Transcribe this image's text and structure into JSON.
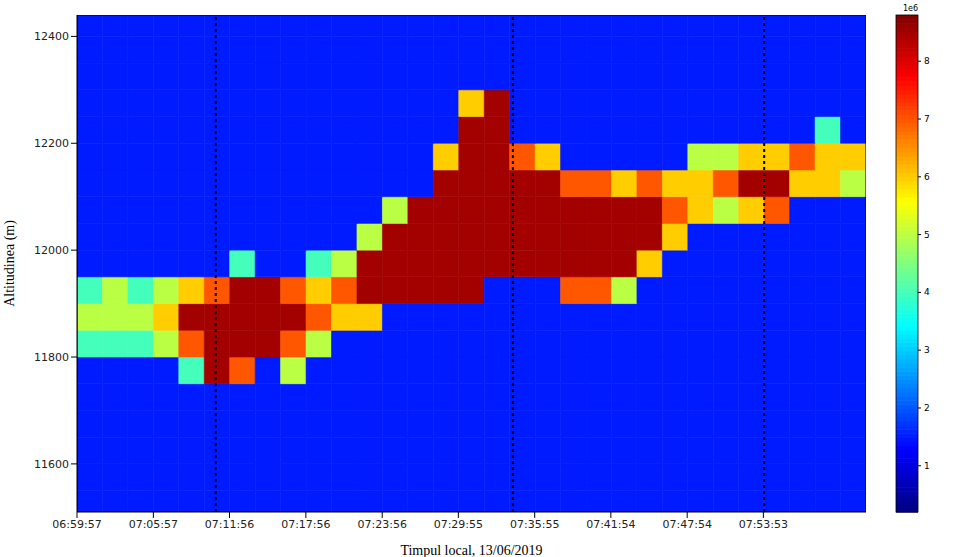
{
  "chart_data": {
    "type": "heatmap",
    "x_label": "Timpul local, 13/06/2019",
    "y_label": "Altitudinea (m)",
    "xlim": [
      25197,
      28917
    ],
    "ylim": [
      11510,
      12440
    ],
    "xticks": [
      {
        "value": 25197,
        "label": "06:59:57"
      },
      {
        "value": 25557,
        "label": "07:05:57"
      },
      {
        "value": 25916,
        "label": "07:11:56"
      },
      {
        "value": 26276,
        "label": "07:17:56"
      },
      {
        "value": 26636,
        "label": "07:23:56"
      },
      {
        "value": 26995,
        "label": "07:29:55"
      },
      {
        "value": 27355,
        "label": "07:35:55"
      },
      {
        "value": 27714,
        "label": "07:41:54"
      },
      {
        "value": 28074,
        "label": "07:47:54"
      },
      {
        "value": 28433,
        "label": "07:53:53"
      }
    ],
    "yticks": [
      11600,
      11800,
      12000,
      12200,
      12400
    ],
    "grid": false,
    "vertical_lines": [
      25851,
      27252,
      28437
    ],
    "x": [
      25257,
      25377,
      25497,
      25617,
      25737,
      25857,
      25977,
      26097,
      26217,
      26337,
      26457,
      26577,
      26697,
      26817,
      26937,
      27057,
      27177,
      27297,
      27417,
      27537,
      27657,
      27777,
      27897,
      28017,
      28137,
      28257,
      28377,
      28497,
      28617,
      28737,
      28857
    ],
    "y": [
      11525,
      11575,
      11625,
      11675,
      11725,
      11775,
      11825,
      11875,
      11925,
      11975,
      12025,
      12075,
      12125,
      12175,
      12225,
      12275,
      12325,
      12375,
      12425
    ],
    "values": [
      [
        1.5,
        1.5,
        1.5,
        1.5,
        1.5,
        1.5,
        1.5,
        1.5,
        1.5,
        1.5,
        1.5,
        1.5,
        1.5,
        1.5,
        1.5,
        1.5,
        1.5,
        1.5,
        1.5,
        1.5,
        1.5,
        1.5,
        1.5,
        1.5,
        1.5,
        1.5,
        1.5,
        1.5,
        1.5,
        1.5,
        1.5
      ],
      [
        1.5,
        1.5,
        1.5,
        1.5,
        1.5,
        1.5,
        1.5,
        1.5,
        1.5,
        1.5,
        1.5,
        1.5,
        1.5,
        1.5,
        1.5,
        1.5,
        1.5,
        1.5,
        1.5,
        1.5,
        1.5,
        1.5,
        1.5,
        1.5,
        1.5,
        1.5,
        1.5,
        1.5,
        1.5,
        1.5,
        1.5
      ],
      [
        1.5,
        1.5,
        1.5,
        1.5,
        1.5,
        1.5,
        1.5,
        1.5,
        1.5,
        1.5,
        1.5,
        1.5,
        1.5,
        1.5,
        1.5,
        1.5,
        1.5,
        1.5,
        1.5,
        1.5,
        1.5,
        1.5,
        1.5,
        1.5,
        1.5,
        1.5,
        1.5,
        1.5,
        1.5,
        1.5,
        1.5
      ],
      [
        1.5,
        1.5,
        1.5,
        1.5,
        1.5,
        1.5,
        1.5,
        1.5,
        1.5,
        1.5,
        1.5,
        1.5,
        1.5,
        1.5,
        1.5,
        1.5,
        1.5,
        1.5,
        1.5,
        1.5,
        1.5,
        1.5,
        1.5,
        1.5,
        1.5,
        1.5,
        1.5,
        1.5,
        1.5,
        1.5,
        1.5
      ],
      [
        1.5,
        1.5,
        1.5,
        1.5,
        1.5,
        1.5,
        1.5,
        1.5,
        1.5,
        1.5,
        1.5,
        1.5,
        1.5,
        1.5,
        1.5,
        1.5,
        1.5,
        1.5,
        1.5,
        1.5,
        1.5,
        1.5,
        1.5,
        1.5,
        1.5,
        1.5,
        1.5,
        1.5,
        1.5,
        1.5,
        1.5
      ],
      [
        1.5,
        1.5,
        1.5,
        1.5,
        4,
        8.5,
        7,
        1.5,
        5,
        1.5,
        1.5,
        1.5,
        1.5,
        1.5,
        1.5,
        1.5,
        1.5,
        1.5,
        1.5,
        1.5,
        1.5,
        1.5,
        1.5,
        1.5,
        1.5,
        1.5,
        1.5,
        1.5,
        1.5,
        1.5,
        1.5
      ],
      [
        4,
        4,
        4,
        5,
        7,
        8.5,
        8.5,
        8.5,
        7,
        5,
        1.5,
        1.5,
        1.5,
        1.5,
        1.5,
        1.5,
        1.5,
        1.5,
        1.5,
        1.5,
        1.5,
        1.5,
        1.5,
        1.5,
        1.5,
        1.5,
        1.5,
        1.5,
        1.5,
        1.5,
        1.5
      ],
      [
        5,
        5,
        5,
        6,
        8.5,
        8.5,
        8.5,
        8.5,
        8.5,
        7,
        6,
        6,
        1.5,
        1.5,
        1.5,
        1.5,
        1.5,
        1.5,
        1.5,
        1.5,
        1.5,
        1.5,
        1.5,
        1.5,
        1.5,
        1.5,
        1.5,
        1.5,
        1.5,
        1.5,
        1.5
      ],
      [
        4,
        5,
        4,
        5,
        6,
        7,
        8.5,
        8.5,
        7,
        6,
        7,
        8.5,
        8.5,
        8.5,
        8.5,
        8.5,
        1.5,
        1.5,
        1.5,
        7,
        7,
        5,
        1.5,
        1.5,
        1.5,
        1.5,
        1.5,
        1.5,
        1.5,
        1.5,
        1.5
      ],
      [
        1.5,
        1.5,
        1.5,
        1.5,
        1.5,
        1.5,
        4,
        1.5,
        1.5,
        4,
        5,
        8.5,
        8.5,
        8.5,
        8.5,
        8.5,
        8.5,
        8.5,
        8.5,
        8.5,
        8.5,
        8.5,
        6,
        1.5,
        1.5,
        1.5,
        1.5,
        1.5,
        1.5,
        1.5,
        1.5
      ],
      [
        1.5,
        1.5,
        1.5,
        1.5,
        1.5,
        1.5,
        1.5,
        1.5,
        1.5,
        1.5,
        1.5,
        5,
        8.5,
        8.5,
        8.5,
        8.5,
        8.5,
        8.5,
        8.5,
        8.5,
        8.5,
        8.5,
        8.5,
        6,
        1.5,
        1.5,
        1.5,
        1.5,
        1.5,
        1.5,
        1.5
      ],
      [
        1.5,
        1.5,
        1.5,
        1.5,
        1.5,
        1.5,
        1.5,
        1.5,
        1.5,
        1.5,
        1.5,
        1.5,
        5,
        8.5,
        8.5,
        8.5,
        8.5,
        8.5,
        8.5,
        8.5,
        8.5,
        8.5,
        8.5,
        7,
        6,
        5,
        6,
        7,
        1.5,
        1.5,
        1.5
      ],
      [
        1.5,
        1.5,
        1.5,
        1.5,
        1.5,
        1.5,
        1.5,
        1.5,
        1.5,
        1.5,
        1.5,
        1.5,
        1.5,
        1.5,
        8.5,
        8.5,
        8.5,
        8.5,
        8.5,
        7,
        7,
        6,
        7,
        6,
        6,
        7,
        8.5,
        8.5,
        6,
        6,
        5
      ],
      [
        1.5,
        1.5,
        1.5,
        1.5,
        1.5,
        1.5,
        1.5,
        1.5,
        1.5,
        1.5,
        1.5,
        1.5,
        1.5,
        1.5,
        6,
        8.5,
        8.5,
        7,
        6,
        1.5,
        1.5,
        1.5,
        1.5,
        1.5,
        5,
        5,
        6,
        6,
        7,
        6,
        6
      ],
      [
        1.5,
        1.5,
        1.5,
        1.5,
        1.5,
        1.5,
        1.5,
        1.5,
        1.5,
        1.5,
        1.5,
        1.5,
        1.5,
        1.5,
        1.5,
        8.5,
        8.5,
        1.5,
        1.5,
        1.5,
        1.5,
        1.5,
        1.5,
        1.5,
        1.5,
        1.5,
        1.5,
        1.5,
        1.5,
        4,
        1.5
      ],
      [
        1.5,
        1.5,
        1.5,
        1.5,
        1.5,
        1.5,
        1.5,
        1.5,
        1.5,
        1.5,
        1.5,
        1.5,
        1.5,
        1.5,
        1.5,
        6,
        8.5,
        1.5,
        1.5,
        1.5,
        1.5,
        1.5,
        1.5,
        1.5,
        1.5,
        1.5,
        1.5,
        1.5,
        1.5,
        1.5,
        1.5
      ],
      [
        1.5,
        1.5,
        1.5,
        1.5,
        1.5,
        1.5,
        1.5,
        1.5,
        1.5,
        1.5,
        1.5,
        1.5,
        1.5,
        1.5,
        1.5,
        1.5,
        1.5,
        1.5,
        1.5,
        1.5,
        1.5,
        1.5,
        1.5,
        1.5,
        1.5,
        1.5,
        1.5,
        1.5,
        1.5,
        1.5,
        1.5
      ],
      [
        1.5,
        1.5,
        1.5,
        1.5,
        1.5,
        1.5,
        1.5,
        1.5,
        1.5,
        1.5,
        1.5,
        1.5,
        1.5,
        1.5,
        1.5,
        1.5,
        1.5,
        1.5,
        1.5,
        1.5,
        1.5,
        1.5,
        1.5,
        1.5,
        1.5,
        1.5,
        1.5,
        1.5,
        1.5,
        1.5,
        1.5
      ],
      [
        1.5,
        1.5,
        1.5,
        1.5,
        1.5,
        1.5,
        1.5,
        1.5,
        1.5,
        1.5,
        1.5,
        1.5,
        1.5,
        1.5,
        1.5,
        1.5,
        1.5,
        1.5,
        1.5,
        1.5,
        1.5,
        1.5,
        1.5,
        1.5,
        1.5,
        1.5,
        1.5,
        1.5,
        1.5,
        1.5,
        1.5
      ]
    ],
    "colorbar": {
      "lim": [
        0.2,
        8.8
      ],
      "ticks": [
        1,
        2,
        3,
        4,
        5,
        6,
        7,
        8
      ],
      "offset_label": "1e6"
    }
  }
}
